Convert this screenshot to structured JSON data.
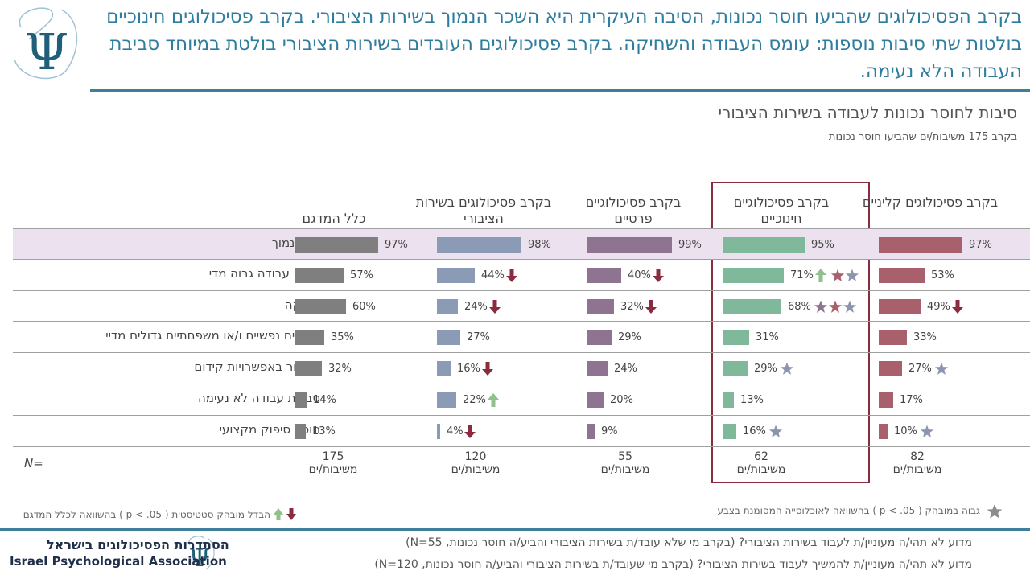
{
  "headline": "בקרב הפסיכולוגים שהביעו חוסר נכונות, הסיבה העיקרית היא השכר הנמוך בשירות הציבורי. בקרב פסיכולוגים חינוכיים בולטות שתי סיבות נוספות: עומס העבודה והשחיקה. בקרב פסיכולוגים העובדים בשירות הציבורי בולטת במיוחד סביבת העבודה הלא נעימה.",
  "colors": {
    "accent": "#2f7d9e",
    "highlight_row": "#ece1ef",
    "highlight_border": "#8a2c40",
    "arrow_down": "#8a2c40",
    "arrow_up": "#8fc28a",
    "star": "#8c95b0"
  },
  "chart_data": {
    "type": "bar",
    "title": "סיבות לחוסר נכונות לעבודה בשירות הציבורי",
    "subtitle": "בקרב 175 משיבות/ים שהביעו חוסר נכונות",
    "categories": [
      "שכר נמוך",
      "עומס עבודה גבוה מדי",
      "שחיקה",
      "מחירים נפשיים ו/או משפחתיים גדולים מדיי",
      "מחסור באפשרויות קידום",
      "סביבת עבודה לא נעימה",
      "חוסר סיפוק מקצועי"
    ],
    "series": [
      {
        "name": "כלל המדגם",
        "color": "#7f7f7f",
        "values": [
          97,
          57,
          60,
          35,
          32,
          14,
          13
        ],
        "labels": [
          "97%",
          "57%",
          "60%",
          "35%",
          "32%",
          "14%",
          "13%"
        ],
        "n": "175",
        "n_unit": "משיבות/ים",
        "arrows": [
          "",
          "",
          "",
          "",
          "",
          "",
          ""
        ],
        "stars": [
          0,
          0,
          0,
          0,
          0,
          0,
          0
        ]
      },
      {
        "name": "בקרב פסיכולוגים בשירות הציבורי",
        "color": "#8c9bb5",
        "values": [
          98,
          44,
          24,
          27,
          16,
          22,
          4
        ],
        "labels": [
          "98%",
          "44%",
          "24%",
          "27%",
          "16%",
          "22%",
          "4%"
        ],
        "n": "120",
        "n_unit": "משיבות/ים",
        "arrows": [
          "",
          "down",
          "down",
          "",
          "down",
          "up",
          "down"
        ],
        "stars": [
          0,
          0,
          0,
          0,
          0,
          0,
          0
        ]
      },
      {
        "name": "בקרב פסיכולוגיים פרטיים",
        "color": "#8e7491",
        "values": [
          99,
          40,
          32,
          29,
          24,
          20,
          9
        ],
        "labels": [
          "99%",
          "40%",
          "32%",
          "29%",
          "24%",
          "20%",
          "9%"
        ],
        "n": "55",
        "n_unit": "משיבות/ים",
        "arrows": [
          "",
          "down",
          "down",
          "",
          "",
          "",
          ""
        ],
        "stars": [
          0,
          0,
          0,
          0,
          0,
          0,
          0
        ]
      },
      {
        "name": "בקרב פסיכולוגיים חינוכיים",
        "color": "#7fb89a",
        "values": [
          95,
          71,
          68,
          31,
          29,
          13,
          16
        ],
        "labels": [
          "95%",
          "71%",
          "68%",
          "31%",
          "29%",
          "13%",
          "16%"
        ],
        "n": "62",
        "n_unit": "משיבות/ים",
        "arrows": [
          "",
          "up",
          "",
          "",
          "",
          "",
          ""
        ],
        "stars": [
          0,
          2,
          3,
          0,
          1,
          0,
          1
        ]
      },
      {
        "name": "בקרב פסיכולוגים קליניים",
        "color": "#a8606d",
        "values": [
          97,
          53,
          49,
          33,
          27,
          17,
          10
        ],
        "labels": [
          "97%",
          "53%",
          "49%",
          "33%",
          "27%",
          "17%",
          "10%"
        ],
        "n": "82",
        "n_unit": "משיבות/ים",
        "arrows": [
          "",
          "",
          "down",
          "",
          "",
          "",
          ""
        ],
        "stars": [
          0,
          0,
          0,
          0,
          1,
          0,
          1
        ]
      }
    ],
    "n_label": "N=",
    "ylim": [
      0,
      100
    ]
  },
  "legend": {
    "star_text": "גבוה במובהק ( p < .05 ) בהשוואה לאוכלוסייה המסומנת בצבע",
    "arrow_text": "הבדל מובהק סטטיסטית ( p < .05 ) בהשוואה לכלל המדגם"
  },
  "footer": {
    "q1": "מדוע לא תהי/ה מעוניין/ת לעבוד בשירות הציבורי? (בקרב מי שלא עובד/ת בשירות הציבורי והביע/ה חוסר נכונות, N=55)",
    "q2": "מדוע לא תהי/ה מעוניין/ת להמשיך לעבוד בשירות הציבורי? (בקרב מי שעובד/ת בשירות הציבורי והביע/ה חוסר נכונות, N=120)",
    "org_hebrew": "הסתדרות הפסיכולוגים בישראל",
    "org_english": "Israel Psychological Association",
    "logo_symbol": "Ψ"
  }
}
